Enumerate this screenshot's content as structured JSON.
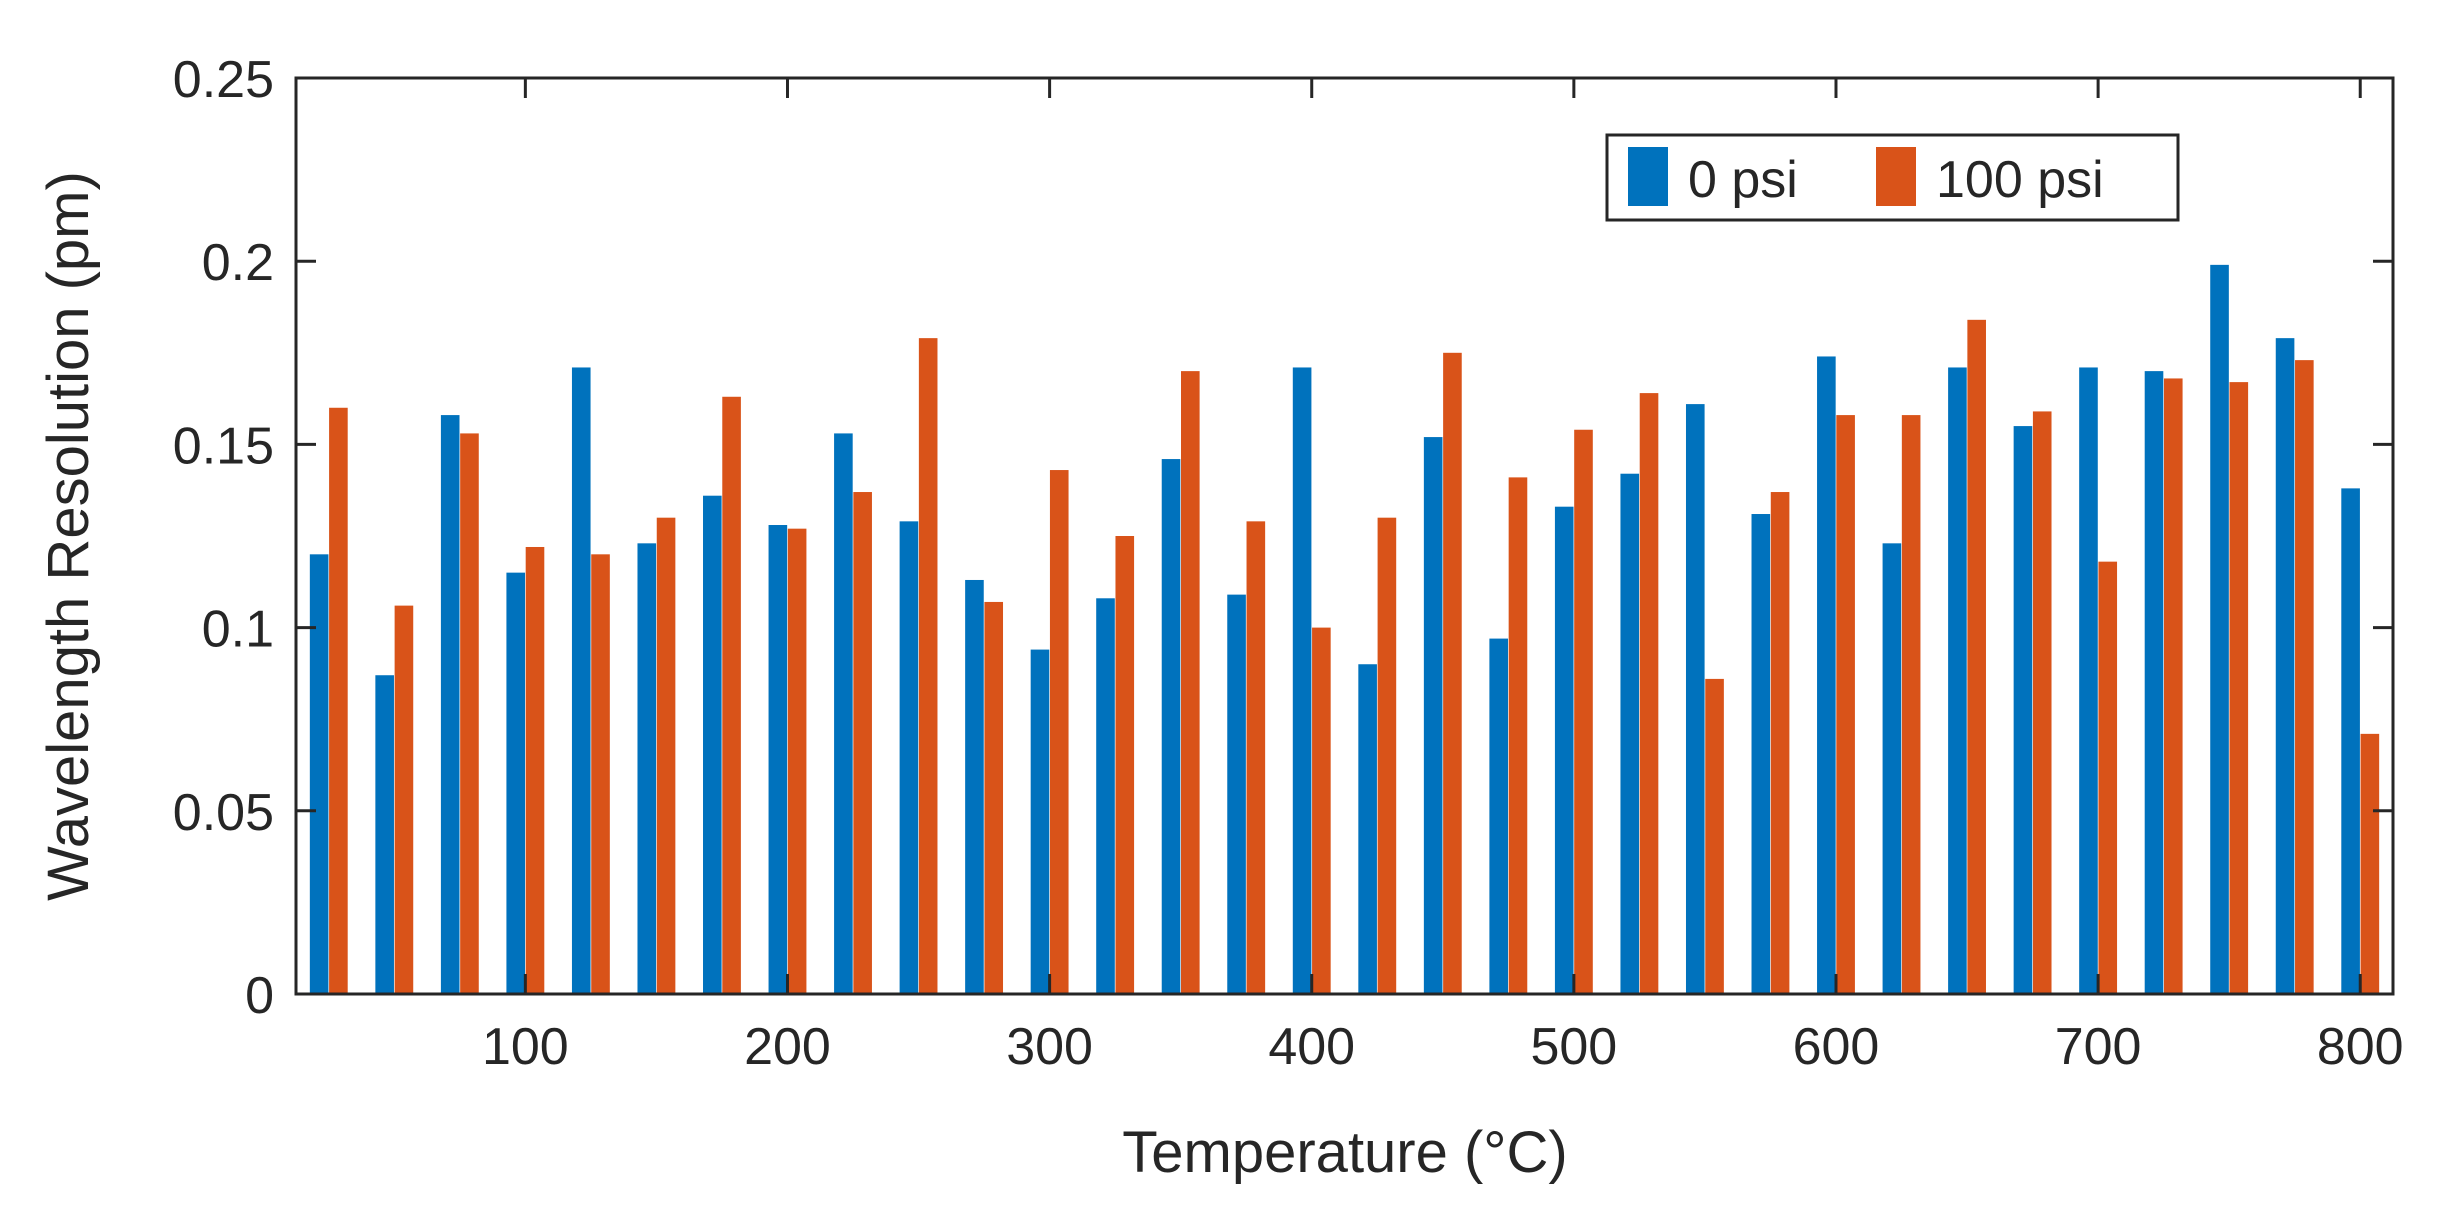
{
  "chart_data": {
    "type": "bar",
    "title": "",
    "xlabel": "Temperature (°C)",
    "ylabel": "Wavelength Resolution (pm)",
    "x": [
      25,
      50,
      75,
      100,
      125,
      150,
      175,
      200,
      225,
      250,
      275,
      300,
      325,
      350,
      375,
      400,
      425,
      450,
      475,
      500,
      525,
      550,
      575,
      600,
      625,
      650,
      675,
      700,
      725,
      750,
      775,
      800
    ],
    "xlim": [
      12.5,
      812.5
    ],
    "xticks": [
      100,
      200,
      300,
      400,
      500,
      600,
      700,
      800
    ],
    "ylim": [
      0,
      0.25
    ],
    "yticks": [
      0,
      0.05,
      0.1,
      0.15,
      0.2,
      0.25
    ],
    "ytick_labels": [
      "0",
      "0.05",
      "0.1",
      "0.15",
      "0.2",
      "0.25"
    ],
    "legend_position": "top-right",
    "series": [
      {
        "name": "0 psi",
        "color": "#0072BD",
        "values": [
          0.12,
          0.087,
          0.158,
          0.115,
          0.171,
          0.123,
          0.136,
          0.128,
          0.153,
          0.129,
          0.113,
          0.094,
          0.108,
          0.146,
          0.109,
          0.171,
          0.09,
          0.152,
          0.097,
          0.133,
          0.142,
          0.161,
          0.131,
          0.174,
          0.123,
          0.171,
          0.155,
          0.171,
          0.17,
          0.199,
          0.179,
          0.138
        ]
      },
      {
        "name": "100 psi",
        "color": "#D95319",
        "values": [
          0.16,
          0.106,
          0.153,
          0.122,
          0.12,
          0.13,
          0.163,
          0.127,
          0.137,
          0.179,
          0.107,
          0.143,
          0.125,
          0.17,
          0.129,
          0.1,
          0.13,
          0.175,
          0.141,
          0.154,
          0.164,
          0.086,
          0.137,
          0.158,
          0.158,
          0.184,
          0.159,
          0.118,
          0.168,
          0.167,
          0.173,
          0.071
        ]
      }
    ]
  }
}
